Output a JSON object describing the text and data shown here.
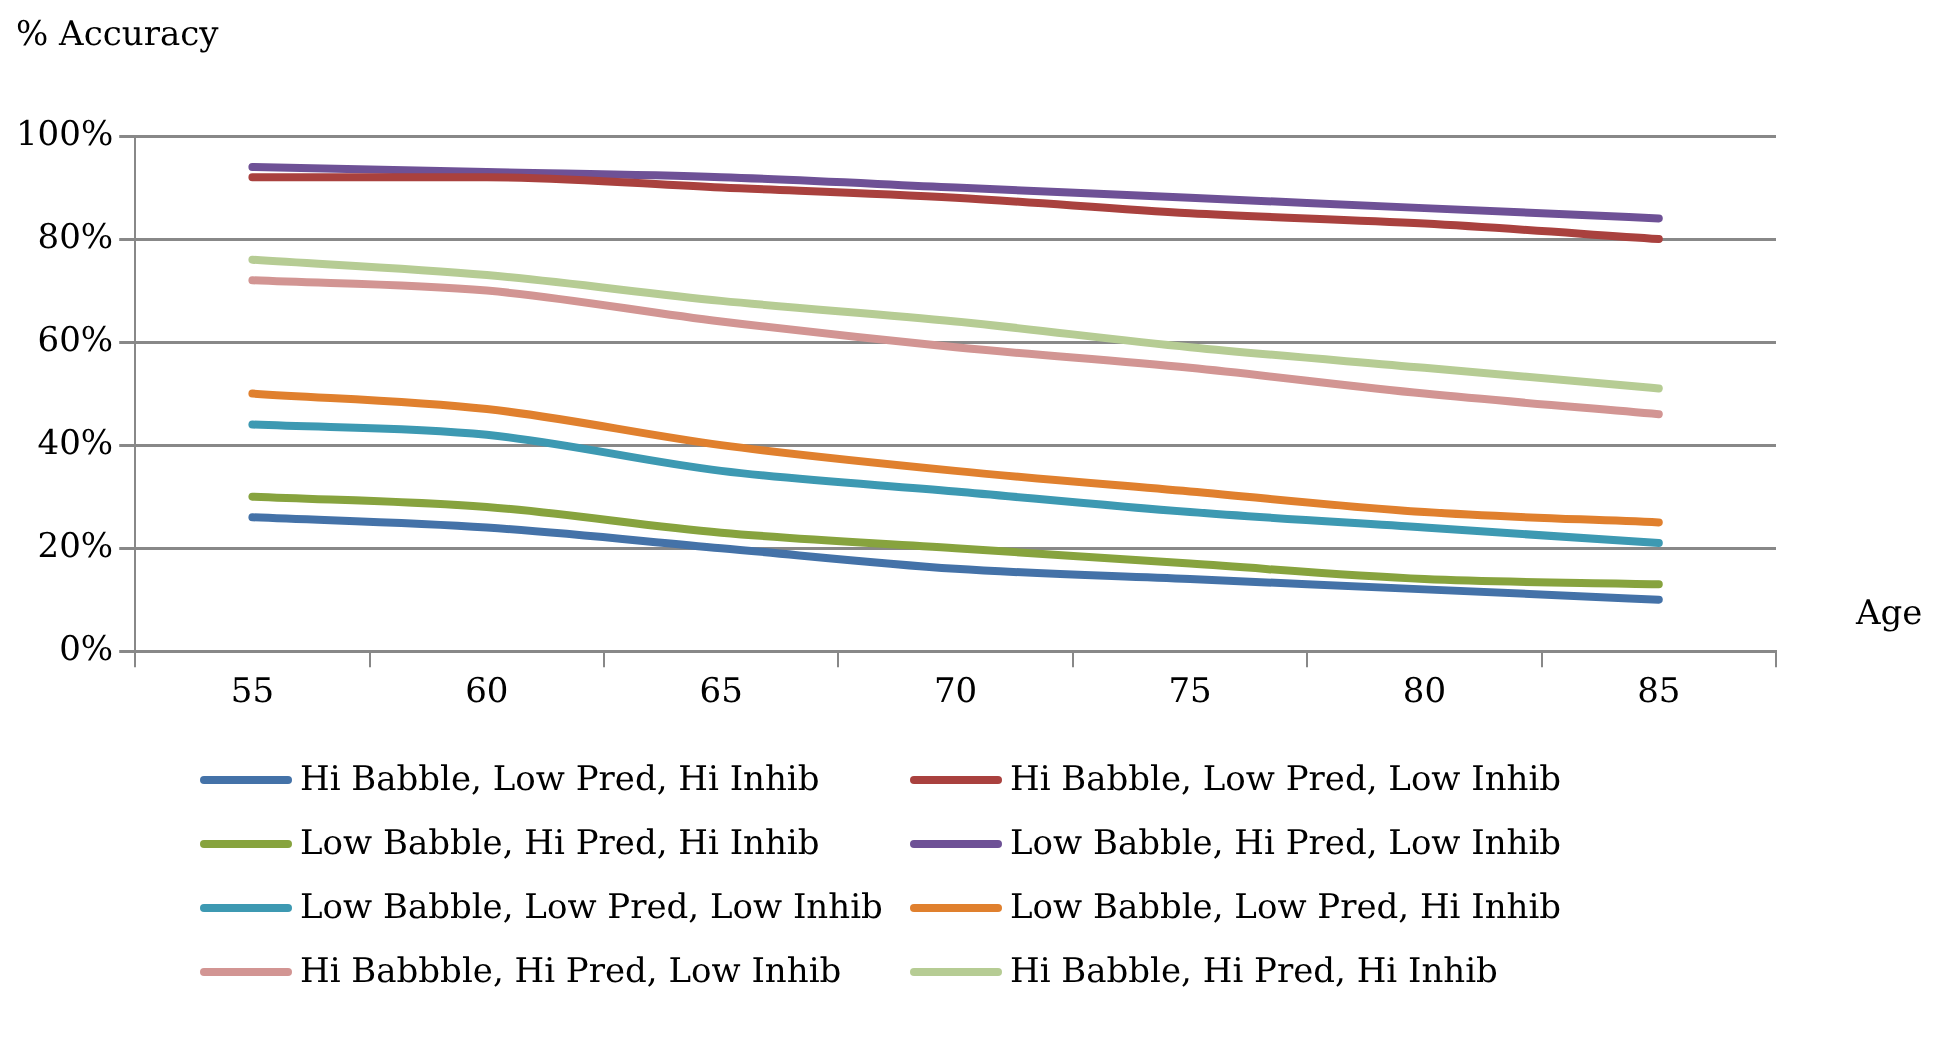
{
  "chart_data": {
    "type": "line",
    "xlabel": "Age",
    "ylabel": "% Accuracy",
    "categories": [
      "55",
      "60",
      "65",
      "70",
      "75",
      "80",
      "85"
    ],
    "ylim": [
      0,
      100
    ],
    "yticks": [
      {
        "value": 0,
        "label": "0%"
      },
      {
        "value": 20,
        "label": "20%"
      },
      {
        "value": 40,
        "label": "40%"
      },
      {
        "value": 60,
        "label": "60%"
      },
      {
        "value": 80,
        "label": "80%"
      },
      {
        "value": 100,
        "label": "100%"
      }
    ],
    "grid": "y",
    "legend": "bottom",
    "marker": "none",
    "series": [
      {
        "name": "Hi Babble, Low Pred, Hi Inhib",
        "color": "#4472a8",
        "values": [
          26,
          24,
          20,
          16,
          14,
          12,
          10
        ]
      },
      {
        "name": "Hi Babble, Low Pred, Low Inhib",
        "color": "#a9413e",
        "values": [
          92,
          92,
          90,
          88,
          85,
          83,
          80
        ]
      },
      {
        "name": "Low Babble, Hi Pred, Hi Inhib",
        "color": "#87a33e",
        "values": [
          30,
          28,
          23,
          20,
          17,
          14,
          13
        ]
      },
      {
        "name": "Low Babble, Hi Pred, Low Inhib",
        "color": "#6e5196",
        "values": [
          94,
          93,
          92,
          90,
          88,
          86,
          84
        ]
      },
      {
        "name": "Low Babble, Low Pred, Low Inhib",
        "color": "#3d99b2",
        "values": [
          44,
          42,
          35,
          31,
          27,
          24,
          21
        ]
      },
      {
        "name": "Low Babble, Low Pred, Hi Inhib",
        "color": "#e0802e",
        "values": [
          50,
          47,
          40,
          35,
          31,
          27,
          25
        ]
      },
      {
        "name": "Hi Babbble, Hi Pred, Low Inhib",
        "color": "#d29593",
        "values": [
          72,
          70,
          64,
          59,
          55,
          50,
          46
        ]
      },
      {
        "name": "Hi Babble, Hi Pred, Hi Inhib",
        "color": "#b6cc94",
        "values": [
          76,
          73,
          68,
          64,
          59,
          55,
          51
        ]
      }
    ]
  }
}
